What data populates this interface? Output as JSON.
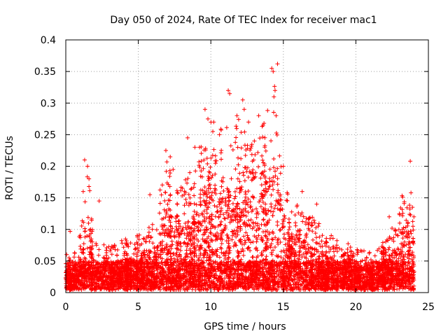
{
  "chart_data": {
    "type": "scatter",
    "title": "Day 050 of 2024, Rate Of TEC Index for receiver mac1",
    "xlabel": "GPS time / hours",
    "ylabel": "ROTI / TECUs",
    "xlim": [
      0,
      25
    ],
    "ylim": [
      0,
      0.4
    ],
    "grid": true,
    "marker": "+",
    "color": "#ff0000",
    "xticks": [
      0,
      5,
      10,
      15,
      20,
      25
    ],
    "xtick_labels": [
      "0",
      "5",
      "10",
      "15",
      "20",
      "25"
    ],
    "yticks": [
      0,
      0.05,
      0.1,
      0.15,
      0.2,
      0.25,
      0.3,
      0.35,
      0.4
    ],
    "ytick_labels": [
      "0",
      "0.05",
      "0.1",
      "0.15",
      "0.2",
      "0.25",
      "0.3",
      "0.35",
      "0.4"
    ],
    "envelope": {
      "description": "approximate upper envelope of the dense point cloud (hour, ROTI)",
      "x": [
        0,
        0.5,
        1,
        1.5,
        2,
        3,
        4,
        5,
        6,
        7,
        8,
        9,
        9.5,
        10,
        10.5,
        11,
        11.5,
        12,
        12.5,
        13,
        13.5,
        14,
        14.5,
        15,
        16,
        17,
        18,
        19,
        20,
        21,
        22,
        23,
        23.5,
        24
      ],
      "y": [
        0.06,
        0.05,
        0.1,
        0.2,
        0.08,
        0.07,
        0.08,
        0.09,
        0.11,
        0.22,
        0.17,
        0.2,
        0.26,
        0.28,
        0.25,
        0.28,
        0.24,
        0.29,
        0.25,
        0.23,
        0.27,
        0.3,
        0.35,
        0.18,
        0.14,
        0.12,
        0.09,
        0.08,
        0.07,
        0.06,
        0.08,
        0.12,
        0.2,
        0.12
      ]
    },
    "notable_points": [
      {
        "x": 0.3,
        "y": 0.097
      },
      {
        "x": 1.3,
        "y": 0.21
      },
      {
        "x": 1.5,
        "y": 0.2
      },
      {
        "x": 1.6,
        "y": 0.18
      },
      {
        "x": 1.2,
        "y": 0.16
      },
      {
        "x": 2.3,
        "y": 0.145
      },
      {
        "x": 5.8,
        "y": 0.155
      },
      {
        "x": 6.9,
        "y": 0.225
      },
      {
        "x": 7.2,
        "y": 0.215
      },
      {
        "x": 8.4,
        "y": 0.245
      },
      {
        "x": 8.9,
        "y": 0.23
      },
      {
        "x": 9.6,
        "y": 0.29
      },
      {
        "x": 9.8,
        "y": 0.275
      },
      {
        "x": 10.2,
        "y": 0.27
      },
      {
        "x": 10.6,
        "y": 0.25
      },
      {
        "x": 11.2,
        "y": 0.32
      },
      {
        "x": 11.3,
        "y": 0.315
      },
      {
        "x": 11.8,
        "y": 0.28
      },
      {
        "x": 12.2,
        "y": 0.305
      },
      {
        "x": 12.3,
        "y": 0.29
      },
      {
        "x": 12.6,
        "y": 0.27
      },
      {
        "x": 13.0,
        "y": 0.24
      },
      {
        "x": 13.3,
        "y": 0.28
      },
      {
        "x": 13.6,
        "y": 0.265
      },
      {
        "x": 14.2,
        "y": 0.355
      },
      {
        "x": 14.3,
        "y": 0.35
      },
      {
        "x": 14.35,
        "y": 0.31
      },
      {
        "x": 14.5,
        "y": 0.28
      },
      {
        "x": 14.6,
        "y": 0.362
      },
      {
        "x": 15.0,
        "y": 0.2
      },
      {
        "x": 16.3,
        "y": 0.16
      },
      {
        "x": 17.3,
        "y": 0.14
      },
      {
        "x": 22.3,
        "y": 0.12
      },
      {
        "x": 23.0,
        "y": 0.125
      },
      {
        "x": 23.75,
        "y": 0.208
      },
      {
        "x": 23.8,
        "y": 0.158
      },
      {
        "x": 23.9,
        "y": 0.135
      },
      {
        "x": 24.0,
        "y": 0.12
      }
    ]
  }
}
